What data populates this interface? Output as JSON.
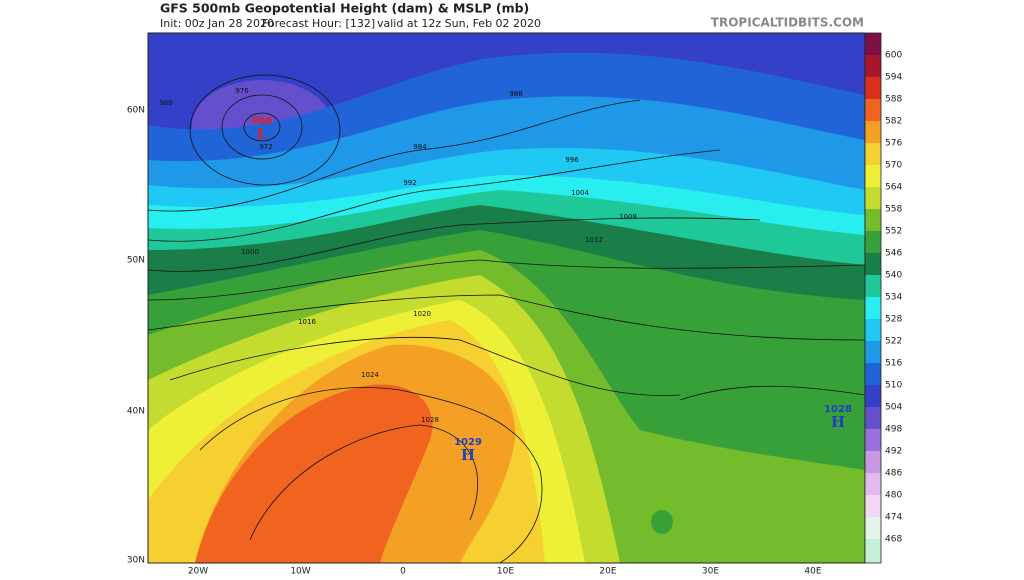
{
  "header": {
    "title": "GFS 500mb Geopotential Height (dam) & MSLP (mb)",
    "init": "Init: 00z Jan 28 2020",
    "forecast": "Forecast Hour: [132]",
    "valid": "valid at 12z Sun, Feb 02 2020",
    "source": "TROPICALTIDBITS.COM"
  },
  "map": {
    "lat_labels": [
      "60N",
      "50N",
      "40N",
      "30N"
    ],
    "lon_labels": [
      "20W",
      "10W",
      "0",
      "10E",
      "20E",
      "30E",
      "40E"
    ],
    "isobar_labels": [
      "980",
      "976",
      "972",
      "984",
      "988",
      "992",
      "996",
      "1000",
      "1004",
      "1008",
      "1012",
      "1016",
      "1020",
      "1024",
      "1028"
    ],
    "centers": [
      {
        "value": "986",
        "letter": "L",
        "color": "#e02020"
      },
      {
        "value": "1029",
        "letter": "H",
        "color": "#2040c0"
      },
      {
        "value": "1028",
        "letter": "H",
        "color": "#2040c0"
      }
    ]
  },
  "colorbar": {
    "labels": [
      600,
      594,
      588,
      582,
      576,
      570,
      564,
      558,
      552,
      546,
      540,
      534,
      528,
      522,
      516,
      510,
      504,
      498,
      492,
      486,
      480,
      474,
      468
    ],
    "colors": [
      "#7c1044",
      "#a8162c",
      "#d8301c",
      "#f06420",
      "#f4a024",
      "#f6d030",
      "#eef038",
      "#c4dc30",
      "#74bc2c",
      "#38a038",
      "#1a7e48",
      "#1ec898",
      "#28eef0",
      "#20c8f4",
      "#2098e8",
      "#2064d8",
      "#3440c8",
      "#6450cc",
      "#9a70dc",
      "#c898e4",
      "#e4b8f0",
      "#f2d8f4",
      "#e4f4e8",
      "#c4f0d8"
    ]
  }
}
